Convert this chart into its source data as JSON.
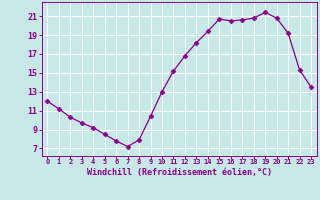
{
  "x": [
    0,
    1,
    2,
    3,
    4,
    5,
    6,
    7,
    8,
    9,
    10,
    11,
    12,
    13,
    14,
    15,
    16,
    17,
    18,
    19,
    20,
    21,
    22,
    23
  ],
  "y": [
    12.0,
    11.2,
    10.3,
    9.7,
    9.2,
    8.5,
    7.8,
    7.2,
    7.9,
    10.4,
    13.0,
    15.2,
    16.8,
    18.2,
    19.4,
    20.7,
    20.5,
    20.6,
    20.8,
    21.4,
    20.8,
    19.2,
    15.3,
    13.5
  ],
  "line_color": "#880088",
  "marker": "D",
  "marker_size": 2.5,
  "bg_color": "#c8e8e8",
  "grid_color": "#aad4d4",
  "xlabel": "Windchill (Refroidissement éolien,°C)",
  "xlabel_color": "#880088",
  "ylabel_ticks": [
    7,
    9,
    11,
    13,
    15,
    17,
    19,
    21
  ],
  "xtick_labels": [
    "0",
    "1",
    "2",
    "3",
    "4",
    "5",
    "6",
    "7",
    "8",
    "9",
    "10",
    "11",
    "12",
    "13",
    "14",
    "15",
    "16",
    "17",
    "18",
    "19",
    "20",
    "21",
    "22",
    "23"
  ],
  "ylim": [
    6.2,
    22.5
  ],
  "xlim": [
    -0.5,
    23.5
  ],
  "tick_color": "#880088",
  "axis_color": "#880088",
  "figsize": [
    3.2,
    2.0
  ],
  "dpi": 100
}
